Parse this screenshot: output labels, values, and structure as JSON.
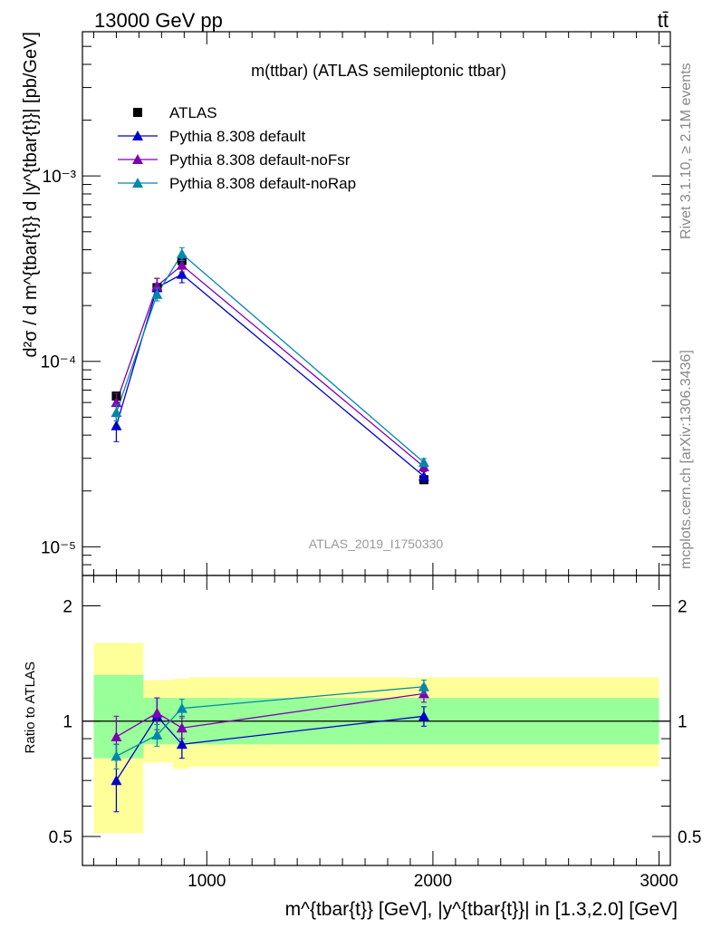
{
  "header": {
    "left": "13000 GeV pp",
    "right": "tt̄"
  },
  "side_labels": {
    "rivet": "Rivet 3.1.10, ≥ 2.1M events",
    "mcplots": "mcplots.cern.ch [arXiv:1306.3436]"
  },
  "colors": {
    "atlas": "#000000",
    "default": "#0000cc",
    "noFsr": "#7f00b2",
    "noRap": "#0088aa",
    "band_inner": "#99ff99",
    "band_outer": "#ffff99"
  },
  "chart_data": [
    {
      "type": "scatter",
      "title": "m(ttbar) (ATLAS semileptonic ttbar)",
      "analysis_label": "ATLAS_2019_I1750330",
      "ylabel": "d²σ / d m^{tbar{t}} d |y^{tbar{t}}| [pb/GeV]",
      "yscale": "log",
      "ylim": [
        7e-06,
        0.006
      ],
      "xlim": [
        450,
        3050
      ],
      "ytick_labels": [
        "10⁻⁵",
        "10⁻⁴",
        "10⁻³"
      ],
      "ytick_values": [
        1e-05,
        0.0001,
        0.001
      ],
      "legend_position": "top-left",
      "x": [
        600,
        780,
        890,
        1960
      ],
      "series": [
        {
          "name": "ATLAS",
          "marker": "square",
          "values": [
            6.5e-05,
            0.00025,
            0.00035,
            2.3e-05
          ]
        },
        {
          "name": "Pythia 8.308 default",
          "marker": "triangle",
          "values": [
            4.5e-05,
            0.00025,
            0.000295,
            2.4e-05
          ],
          "err": [
            0.18,
            0.12,
            0.1,
            0.07
          ]
        },
        {
          "name": "Pythia 8.308 default-noFsr",
          "marker": "triangle",
          "values": [
            6e-05,
            0.000255,
            0.00033,
            2.7e-05
          ],
          "err": [
            0.12,
            0.1,
            0.08,
            0.06
          ]
        },
        {
          "name": "Pythia 8.308 default-noRap",
          "marker": "triangle",
          "values": [
            5.3e-05,
            0.00023,
            0.00038,
            2.85e-05
          ],
          "err": [
            0.1,
            0.08,
            0.08,
            0.05
          ]
        }
      ]
    },
    {
      "type": "scatter",
      "ylabel": "Ratio to ATLAS",
      "xlabel": "m^{tbar{t}} [GeV], |y^{tbar{t}}| in [1.3,2.0] [GeV]",
      "yscale": "log",
      "ylim": [
        0.42,
        2.4
      ],
      "xlim": [
        450,
        3050
      ],
      "ytick_labels": [
        "0.5",
        "1",
        "2"
      ],
      "ytick_values": [
        0.5,
        1,
        2
      ],
      "xtick_labels": [
        "1000",
        "2000",
        "3000"
      ],
      "xtick_values": [
        1000,
        2000,
        3000
      ],
      "bands": [
        {
          "xlo": 500,
          "xhi": 720,
          "inner": [
            0.8,
            1.32
          ],
          "outer": [
            0.51,
            1.6
          ]
        },
        {
          "xlo": 720,
          "xhi": 850,
          "inner": [
            0.87,
            1.15
          ],
          "outer": [
            0.78,
            1.28
          ]
        },
        {
          "xlo": 850,
          "xhi": 920,
          "inner": [
            0.87,
            1.15
          ],
          "outer": [
            0.75,
            1.29
          ]
        },
        {
          "xlo": 920,
          "xhi": 3000,
          "inner": [
            0.87,
            1.15
          ],
          "outer": [
            0.76,
            1.3
          ]
        }
      ],
      "x": [
        600,
        780,
        890,
        1960
      ],
      "series": [
        {
          "name": "Pythia 8.308 default",
          "values": [
            0.7,
            1.03,
            0.87,
            1.03
          ],
          "err": [
            [
              0.58,
              0.87
            ],
            [
              0.9,
              1.15
            ],
            [
              0.8,
              0.95
            ],
            [
              0.97,
              1.09
            ]
          ]
        },
        {
          "name": "Pythia 8.308 default-noFsr",
          "values": [
            0.91,
            1.05,
            0.96,
            1.18
          ],
          "err": [
            [
              0.8,
              1.03
            ],
            [
              0.95,
              1.15
            ],
            [
              0.9,
              1.03
            ],
            [
              1.12,
              1.24
            ]
          ]
        },
        {
          "name": "Pythia 8.308 default-noRap",
          "values": [
            0.81,
            0.92,
            1.08,
            1.23
          ],
          "err": [
            [
              0.75,
              0.87
            ],
            [
              0.86,
              0.98
            ],
            [
              1.02,
              1.14
            ],
            [
              1.18,
              1.28
            ]
          ]
        }
      ]
    }
  ]
}
